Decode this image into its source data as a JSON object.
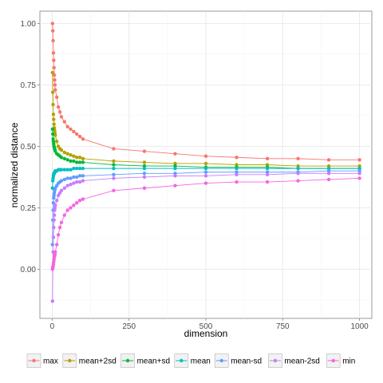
{
  "chart_data": {
    "type": "line",
    "xlabel": "dimension",
    "ylabel": "normalized distance",
    "xlim": [
      -40,
      1040
    ],
    "ylim": [
      -0.2,
      1.05
    ],
    "xticks": [
      0,
      250,
      500,
      750,
      1000
    ],
    "xtick_labels": [
      "0",
      "250",
      "500",
      "750",
      "1000"
    ],
    "yticks": [
      0.0,
      0.25,
      0.5,
      0.75,
      1.0
    ],
    "ytick_labels": [
      "0.00",
      "0.25",
      "0.50",
      "0.75",
      "1.00"
    ],
    "grid": true,
    "legend_position": "bottom",
    "x": [
      1,
      2,
      3,
      4,
      5,
      6,
      7,
      8,
      9,
      10,
      15,
      20,
      25,
      30,
      40,
      50,
      60,
      70,
      80,
      90,
      100,
      200,
      300,
      400,
      500,
      600,
      700,
      800,
      900,
      1000
    ],
    "series": [
      {
        "name": "max",
        "color": "#F8766D",
        "values": [
          1.0,
          0.97,
          0.93,
          0.88,
          0.85,
          0.82,
          0.79,
          0.77,
          0.75,
          0.73,
          0.7,
          0.66,
          0.64,
          0.62,
          0.6,
          0.58,
          0.57,
          0.56,
          0.55,
          0.54,
          0.53,
          0.49,
          0.48,
          0.47,
          0.46,
          0.455,
          0.45,
          0.45,
          0.445,
          0.445
        ]
      },
      {
        "name": "mean+2sd",
        "color": "#B79F00",
        "values": [
          0.8,
          0.72,
          0.67,
          0.63,
          0.61,
          0.59,
          0.575,
          0.565,
          0.555,
          0.545,
          0.52,
          0.5,
          0.49,
          0.485,
          0.475,
          0.47,
          0.465,
          0.46,
          0.455,
          0.455,
          0.45,
          0.44,
          0.435,
          0.43,
          0.43,
          0.425,
          0.425,
          0.42,
          0.42,
          0.42
        ]
      },
      {
        "name": "mean+sd",
        "color": "#00BA38",
        "values": [
          0.57,
          0.55,
          0.53,
          0.52,
          0.51,
          0.5,
          0.495,
          0.49,
          0.485,
          0.48,
          0.47,
          0.465,
          0.46,
          0.455,
          0.45,
          0.445,
          0.44,
          0.44,
          0.435,
          0.435,
          0.435,
          0.425,
          0.42,
          0.42,
          0.415,
          0.415,
          0.415,
          0.41,
          0.41,
          0.41
        ]
      },
      {
        "name": "mean",
        "color": "#00BFC4",
        "values": [
          0.33,
          0.36,
          0.37,
          0.38,
          0.385,
          0.39,
          0.39,
          0.395,
          0.395,
          0.4,
          0.4,
          0.405,
          0.405,
          0.405,
          0.405,
          0.405,
          0.405,
          0.41,
          0.41,
          0.41,
          0.41,
          0.41,
          0.41,
          0.41,
          0.41,
          0.41,
          0.41,
          0.41,
          0.41,
          0.41
        ]
      },
      {
        "name": "mean-sd",
        "color": "#619CFF",
        "values": [
          0.1,
          0.2,
          0.24,
          0.27,
          0.29,
          0.3,
          0.31,
          0.32,
          0.325,
          0.33,
          0.34,
          0.35,
          0.355,
          0.36,
          0.365,
          0.37,
          0.37,
          0.375,
          0.375,
          0.38,
          0.38,
          0.385,
          0.39,
          0.39,
          0.395,
          0.395,
          0.395,
          0.395,
          0.4,
          0.4
        ]
      },
      {
        "name": "mean-2sd",
        "color": "#C77CFF",
        "values": [
          -0.13,
          0.01,
          0.07,
          0.13,
          0.17,
          0.2,
          0.22,
          0.24,
          0.25,
          0.26,
          0.28,
          0.3,
          0.31,
          0.32,
          0.33,
          0.34,
          0.345,
          0.35,
          0.355,
          0.355,
          0.36,
          0.37,
          0.375,
          0.38,
          0.38,
          0.385,
          0.385,
          0.39,
          0.39,
          0.39
        ]
      },
      {
        "name": "min",
        "color": "#F564E3",
        "values": [
          0.0,
          0.005,
          0.01,
          0.02,
          0.03,
          0.04,
          0.05,
          0.055,
          0.06,
          0.07,
          0.1,
          0.14,
          0.17,
          0.19,
          0.22,
          0.24,
          0.25,
          0.26,
          0.27,
          0.28,
          0.285,
          0.32,
          0.33,
          0.34,
          0.35,
          0.355,
          0.355,
          0.36,
          0.365,
          0.37
        ]
      }
    ]
  }
}
